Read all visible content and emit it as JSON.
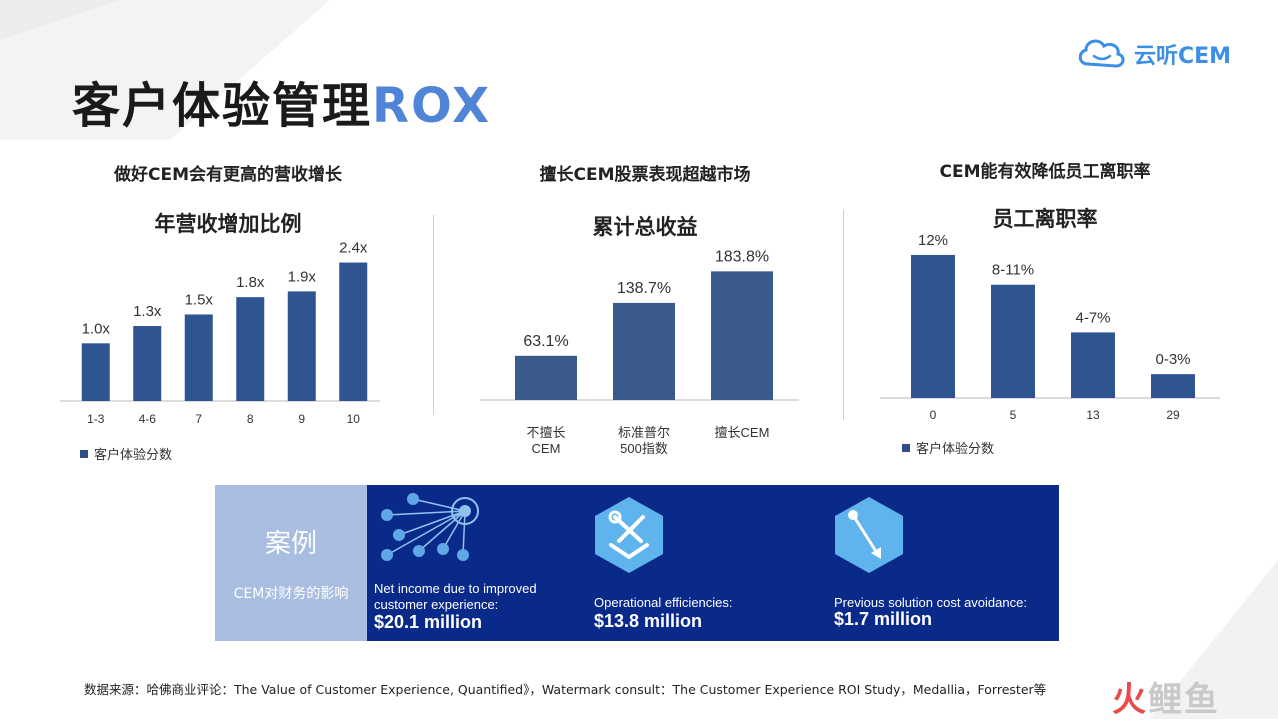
{
  "brand": {
    "logo_text": "云听CEM",
    "accent_color": "#3d8fe6"
  },
  "title": {
    "main": "客户体验管理",
    "accent": "ROX",
    "accent_color": "#4f84d6"
  },
  "panels": [
    {
      "heading": "做好CEM会有更高的营收增长",
      "chart_title": "年营收增加比例",
      "legend": "客户体验分数"
    },
    {
      "heading": "擅长CEM股票表现超越市场",
      "chart_title": "累计总收益",
      "legend": ""
    },
    {
      "heading": "CEM能有效降低员工离职率",
      "chart_title": "员工离职率",
      "legend": "客户体验分数"
    }
  ],
  "chart_data": [
    {
      "type": "bar",
      "title": "年营收增加比例",
      "categories": [
        "1-3",
        "4-6",
        "7",
        "8",
        "9",
        "10"
      ],
      "values": [
        1.0,
        1.3,
        1.5,
        1.8,
        1.9,
        2.4
      ],
      "labels": [
        "1.0x",
        "1.3x",
        "1.5x",
        "1.8x",
        "1.9x",
        "2.4x"
      ],
      "ylim": [
        0,
        2.6
      ],
      "legend": "客户体验分数",
      "legend_position": "bottom-left",
      "color": "#2f5590"
    },
    {
      "type": "bar",
      "title": "累计总收益",
      "categories": [
        "不擅长|CEM",
        "标准普尔|500指数",
        "擅长CEM"
      ],
      "values": [
        63.1,
        138.7,
        183.8
      ],
      "labels": [
        "63.1%",
        "138.7%",
        "183.8%"
      ],
      "ylim": [
        0,
        200
      ],
      "color": "#3a5a8c"
    },
    {
      "type": "bar",
      "title": "员工离职率",
      "categories": [
        "0",
        "5",
        "13",
        "29"
      ],
      "values": [
        12,
        9.5,
        5.5,
        2
      ],
      "labels": [
        "12%",
        "8-11%",
        "4-7%",
        "0-3%"
      ],
      "ylim": [
        0,
        13
      ],
      "legend": "客户体验分数",
      "legend_position": "bottom-left",
      "color": "#2f5590"
    }
  ],
  "case": {
    "title": "案例",
    "subtitle": "CEM对财务的影响",
    "left_color": "#a8bde0",
    "right_color": "#0a2a8a",
    "metrics": [
      {
        "icon": "network-icon",
        "label": "Net income due to improved customer experience:",
        "value": "$20.1 million"
      },
      {
        "icon": "tools-icon",
        "label": "Operational efficiencies:",
        "value": "$13.8 million"
      },
      {
        "icon": "pointer-icon",
        "label": "Previous solution cost avoidance:",
        "value": "$1.7 million"
      }
    ]
  },
  "source": "数据来源：哈佛商业评论：The Value of Customer Experience, Quantified》，Watermark consult：The Customer Experience ROI Study，Medallia，Forrester等",
  "watermark": {
    "part1": "火",
    "part2": "鲤鱼"
  }
}
